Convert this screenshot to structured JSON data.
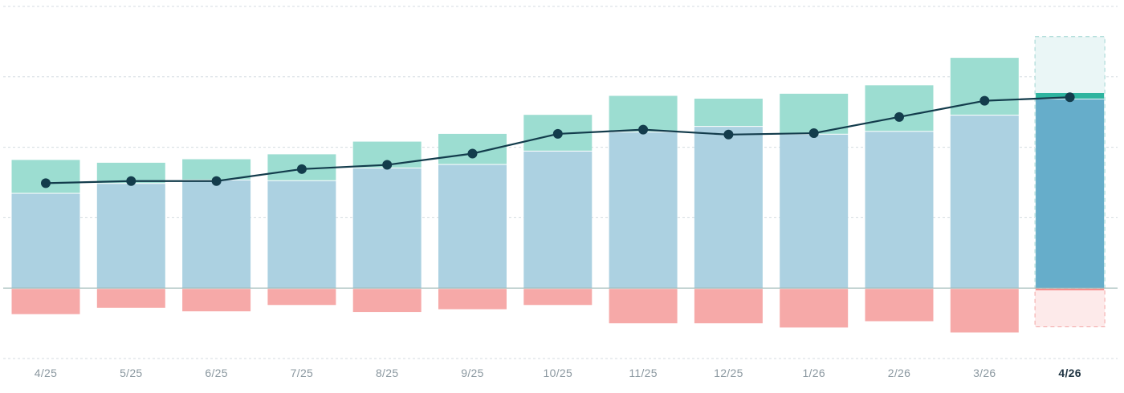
{
  "chart_data": {
    "type": "bar",
    "categories": [
      "4/25",
      "5/25",
      "6/25",
      "7/25",
      "8/25",
      "9/25",
      "10/25",
      "11/25",
      "12/25",
      "1/26",
      "2/26",
      "3/26",
      "4/26"
    ],
    "highlighted_category": "4/26",
    "series": [
      {
        "kind": "stacked-bar-positive",
        "values": [
          134,
          148,
          153,
          152,
          170,
          175,
          194,
          221,
          229,
          218,
          222,
          245,
          268
        ]
      },
      {
        "kind": "stacked-bar-positive",
        "values": [
          48,
          30,
          30,
          38,
          38,
          44,
          52,
          52,
          40,
          58,
          66,
          82,
          9
        ]
      },
      {
        "kind": "stacked-bar-negative",
        "values": [
          -37,
          -28,
          -33,
          -24,
          -34,
          -30,
          -24,
          -50,
          -50,
          -56,
          -47,
          -63,
          -3
        ]
      },
      {
        "kind": "line",
        "values": [
          149,
          152,
          152,
          169,
          175,
          191,
          219,
          225,
          218,
          220,
          243,
          266,
          271
        ]
      }
    ],
    "forecast": {
      "category": "4/26",
      "upper": 357,
      "lower": -55
    },
    "ylim": [
      -100,
      400
    ],
    "y_gridlines": [
      400,
      300,
      200,
      100,
      0,
      -100
    ],
    "grid": true,
    "colors": {
      "positive": "#acd1e1",
      "positive_highlight": "#66adca",
      "growth": "#9cddd1",
      "growth_highlight": "#2eb49f",
      "negative": "#f6a9a8",
      "negative_highlight": "#f57c7a",
      "line": "#133c4c",
      "forecast_fill": "#eaf6f6",
      "forecast_border": "#9fd5d2",
      "forecast_neg_fill": "#fdeaea",
      "forecast_neg_border": "#f3a6a5",
      "grid": "#d4dbe0",
      "zero_line": "#9bb7b5",
      "tick_label": "#8b98a0",
      "tick_label_current": "#1f3442"
    }
  }
}
